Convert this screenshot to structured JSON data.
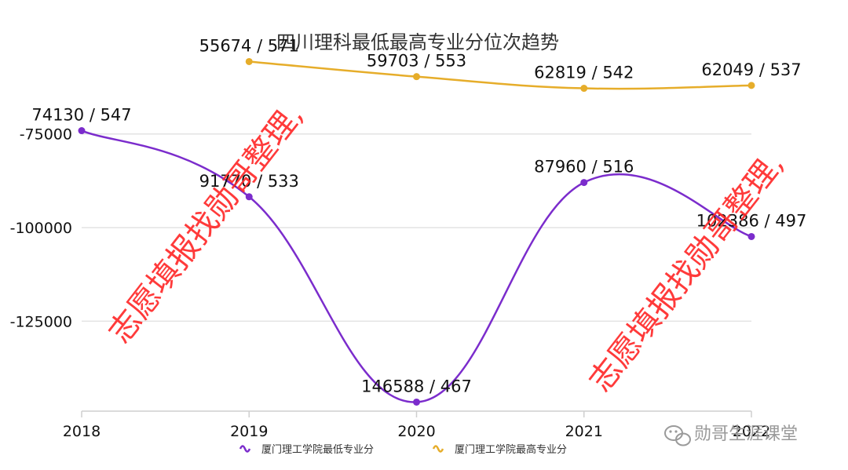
{
  "chart_data": {
    "type": "line",
    "title": "四川理科最低最高专业分位次趋势",
    "categories": [
      "2018",
      "2019",
      "2020",
      "2021",
      "2022"
    ],
    "y_ticks": [
      "-75000",
      "-100000",
      "-125000"
    ],
    "ylim": [
      -149000,
      -56000
    ],
    "series": [
      {
        "name": "厦门理工学院最低专业分",
        "color": "#7b2ccc",
        "values": [
          -74130,
          -91770,
          -146588,
          -87960,
          -102386
        ],
        "labels": [
          "74130 / 547",
          "91770 / 533",
          "146588 / 467",
          "87960 / 516",
          "102386 / 497"
        ]
      },
      {
        "name": "厦门理工学院最高专业分",
        "color": "#e6ad2a",
        "values": [
          null,
          -55674,
          -59703,
          -62819,
          -62049
        ],
        "labels": [
          "",
          "55674 / 571",
          "59703 / 553",
          "62819 / 542",
          "62049 / 537"
        ]
      }
    ]
  },
  "watermark": {
    "text": "志愿填报找勋哥整理,",
    "color": "#ff2a2a"
  },
  "brand": {
    "text": "勋哥生涯课堂",
    "icon": "wechat-icon"
  }
}
